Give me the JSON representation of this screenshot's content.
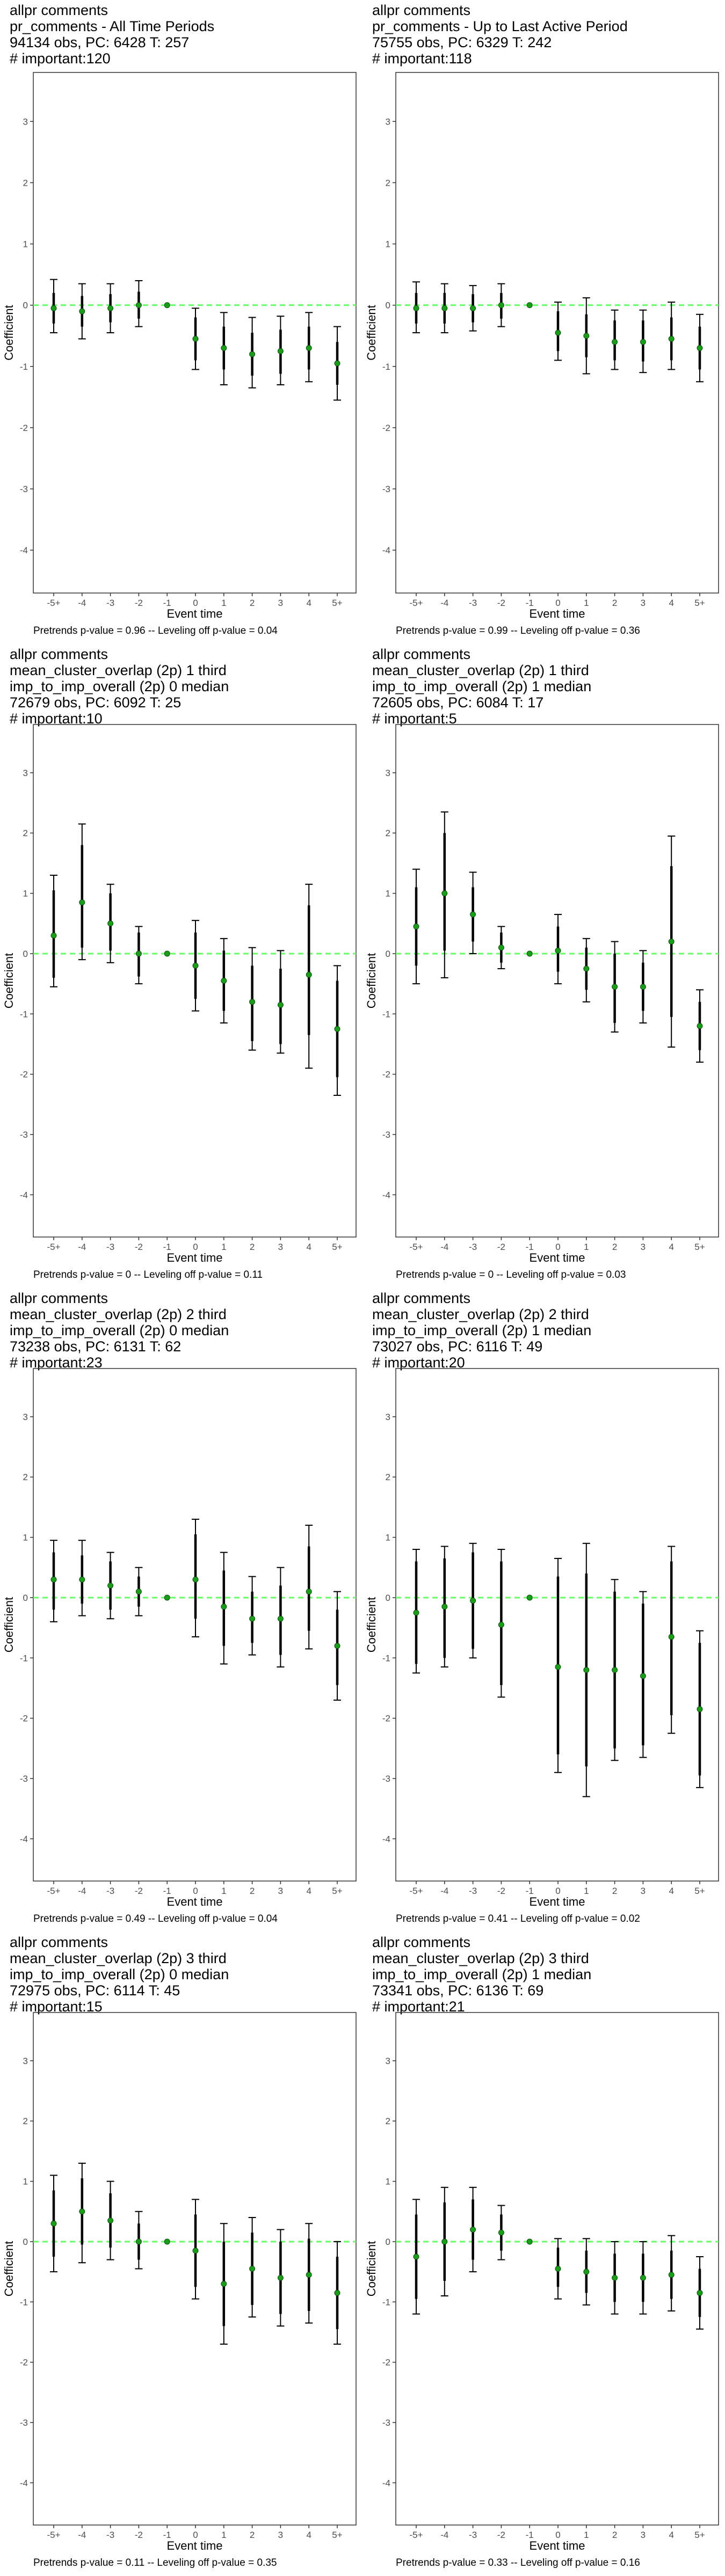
{
  "axes": {
    "xlabel": "Event time",
    "ylabel": "Coefficient"
  },
  "chart_data": [
    {
      "type": "scatter",
      "title_lines": [
        "allpr comments",
        "pr_comments - All Time Periods",
        "94134 obs, PC: 6428 T: 257",
        "# important:120"
      ],
      "footnote": "Pretrends p-value = 0.96 -- Leveling off p-value = 0.04",
      "xlabel": "Event time",
      "ylabel": "Coefficient",
      "ylim": [
        -4.7,
        3.8
      ],
      "yticks": [
        "-4",
        "-3",
        "-2",
        "-1",
        "0",
        "1",
        "2",
        "3"
      ],
      "categories": [
        "-5+",
        "-4",
        "-3",
        "-2",
        "-1",
        "0",
        "1",
        "2",
        "3",
        "4",
        "5+"
      ],
      "series": [
        {
          "estimate": [
            -0.05,
            -0.1,
            -0.05,
            0.0,
            0.0,
            -0.55,
            -0.7,
            -0.8,
            -0.75,
            -0.7,
            -0.95
          ],
          "inner_low": [
            -0.3,
            -0.35,
            -0.28,
            -0.22,
            0.0,
            -0.9,
            -1.05,
            -1.15,
            -1.12,
            -1.05,
            -1.3
          ],
          "inner_high": [
            0.2,
            0.15,
            0.18,
            0.22,
            0.0,
            -0.2,
            -0.35,
            -0.45,
            -0.4,
            -0.35,
            -0.6
          ],
          "outer_low": [
            -0.45,
            -0.55,
            -0.45,
            -0.35,
            0.0,
            -1.05,
            -1.3,
            -1.35,
            -1.3,
            -1.25,
            -1.55
          ],
          "outer_high": [
            0.42,
            0.35,
            0.35,
            0.4,
            0.0,
            -0.05,
            -0.12,
            -0.2,
            -0.18,
            -0.12,
            -0.35
          ]
        }
      ]
    },
    {
      "type": "scatter",
      "title_lines": [
        "allpr comments",
        "pr_comments - Up to Last Active Period",
        "75755 obs, PC: 6329 T: 242",
        "# important:118"
      ],
      "footnote": "Pretrends p-value = 0.99 -- Leveling off p-value = 0.36",
      "xlabel": "Event time",
      "ylabel": "Coefficient",
      "ylim": [
        -4.7,
        3.8
      ],
      "yticks": [
        "-4",
        "-3",
        "-2",
        "-1",
        "0",
        "1",
        "2",
        "3"
      ],
      "categories": [
        "-5+",
        "-4",
        "-3",
        "-2",
        "-1",
        "0",
        "1",
        "2",
        "3",
        "4",
        "5+"
      ],
      "series": [
        {
          "estimate": [
            -0.05,
            -0.05,
            -0.05,
            0.0,
            0.0,
            -0.45,
            -0.5,
            -0.6,
            -0.6,
            -0.55,
            -0.7
          ],
          "inner_low": [
            -0.3,
            -0.3,
            -0.28,
            -0.22,
            0.0,
            -0.75,
            -0.85,
            -0.9,
            -0.92,
            -0.9,
            -1.05
          ],
          "inner_high": [
            0.2,
            0.2,
            0.18,
            0.2,
            0.0,
            -0.1,
            -0.15,
            -0.25,
            -0.25,
            -0.2,
            -0.35
          ],
          "outer_low": [
            -0.45,
            -0.45,
            -0.42,
            -0.35,
            0.0,
            -0.9,
            -1.12,
            -1.05,
            -1.1,
            -1.05,
            -1.25
          ],
          "outer_high": [
            0.38,
            0.35,
            0.32,
            0.35,
            0.0,
            0.05,
            0.12,
            -0.08,
            -0.08,
            0.05,
            -0.15
          ]
        }
      ]
    },
    {
      "type": "scatter",
      "title_lines": [
        "allpr comments",
        "mean_cluster_overlap (2p) 1 third",
        "imp_to_imp_overall (2p) 0 median",
        "72679 obs, PC: 6092 T: 25",
        "# important:10"
      ],
      "footnote": "Pretrends p-value = 0 -- Leveling off p-value = 0.11",
      "xlabel": "Event time",
      "ylabel": "Coefficient",
      "ylim": [
        -4.7,
        3.8
      ],
      "yticks": [
        "-4",
        "-3",
        "-2",
        "-1",
        "0",
        "1",
        "2",
        "3"
      ],
      "categories": [
        "-5+",
        "-4",
        "-3",
        "-2",
        "-1",
        "0",
        "1",
        "2",
        "3",
        "4",
        "5+"
      ],
      "series": [
        {
          "estimate": [
            0.3,
            0.85,
            0.5,
            0.0,
            0.0,
            -0.2,
            -0.45,
            -0.8,
            -0.85,
            -0.35,
            -1.25
          ],
          "inner_low": [
            -0.4,
            0.1,
            0.05,
            -0.38,
            0.0,
            -0.75,
            -0.95,
            -1.45,
            -1.5,
            -1.35,
            -2.05
          ],
          "inner_high": [
            1.05,
            1.8,
            1.0,
            0.35,
            0.0,
            0.35,
            0.05,
            -0.2,
            -0.25,
            0.8,
            -0.45
          ],
          "outer_low": [
            -0.55,
            -0.1,
            -0.15,
            -0.5,
            0.0,
            -0.95,
            -1.15,
            -1.6,
            -1.65,
            -1.9,
            -2.35
          ],
          "outer_high": [
            1.3,
            2.15,
            1.15,
            0.45,
            0.0,
            0.55,
            0.25,
            0.1,
            0.05,
            1.15,
            -0.2
          ]
        }
      ]
    },
    {
      "type": "scatter",
      "title_lines": [
        "allpr comments",
        "mean_cluster_overlap (2p) 1 third",
        "imp_to_imp_overall (2p) 1 median",
        "72605 obs, PC: 6084 T: 17",
        "# important:5"
      ],
      "footnote": "Pretrends p-value = 0 -- Leveling off p-value = 0.03",
      "xlabel": "Event time",
      "ylabel": "Coefficient",
      "ylim": [
        -4.7,
        3.8
      ],
      "yticks": [
        "-4",
        "-3",
        "-2",
        "-1",
        "0",
        "1",
        "2",
        "3"
      ],
      "categories": [
        "-5+",
        "-4",
        "-3",
        "-2",
        "-1",
        "0",
        "1",
        "2",
        "3",
        "4",
        "5+"
      ],
      "series": [
        {
          "estimate": [
            0.45,
            1.0,
            0.65,
            0.1,
            0.0,
            0.05,
            -0.25,
            -0.55,
            -0.55,
            0.2,
            -1.2
          ],
          "inner_low": [
            -0.2,
            0.05,
            0.2,
            -0.15,
            0.0,
            -0.3,
            -0.6,
            -1.15,
            -0.95,
            -1.05,
            -1.6
          ],
          "inner_high": [
            1.1,
            2.0,
            1.1,
            0.35,
            0.0,
            0.45,
            0.1,
            0.0,
            -0.15,
            1.45,
            -0.8
          ],
          "outer_low": [
            -0.5,
            -0.4,
            0.0,
            -0.25,
            0.0,
            -0.5,
            -0.8,
            -1.3,
            -1.15,
            -1.55,
            -1.8
          ],
          "outer_high": [
            1.4,
            2.35,
            1.35,
            0.45,
            0.0,
            0.65,
            0.25,
            0.2,
            0.05,
            1.95,
            -0.6
          ]
        }
      ]
    },
    {
      "type": "scatter",
      "title_lines": [
        "allpr comments",
        "mean_cluster_overlap (2p) 2 third",
        "imp_to_imp_overall (2p) 0 median",
        "73238 obs, PC: 6131 T: 62",
        "# important:23"
      ],
      "footnote": "Pretrends p-value = 0.49 -- Leveling off p-value = 0.04",
      "xlabel": "Event time",
      "ylabel": "Coefficient",
      "ylim": [
        -4.7,
        3.8
      ],
      "yticks": [
        "-4",
        "-3",
        "-2",
        "-1",
        "0",
        "1",
        "2",
        "3"
      ],
      "categories": [
        "-5+",
        "-4",
        "-3",
        "-2",
        "-1",
        "0",
        "1",
        "2",
        "3",
        "4",
        "5+"
      ],
      "series": [
        {
          "estimate": [
            0.3,
            0.3,
            0.2,
            0.1,
            0.0,
            0.3,
            -0.15,
            -0.35,
            -0.35,
            0.1,
            -0.8
          ],
          "inner_low": [
            -0.2,
            -0.1,
            -0.2,
            -0.15,
            0.0,
            -0.35,
            -0.8,
            -0.75,
            -0.95,
            -0.55,
            -1.45
          ],
          "inner_high": [
            0.75,
            0.7,
            0.6,
            0.35,
            0.0,
            1.05,
            0.45,
            0.1,
            0.2,
            0.85,
            -0.2
          ],
          "outer_low": [
            -0.4,
            -0.3,
            -0.35,
            -0.3,
            0.0,
            -0.65,
            -1.1,
            -0.95,
            -1.15,
            -0.85,
            -1.7
          ],
          "outer_high": [
            0.95,
            0.95,
            0.75,
            0.5,
            0.0,
            1.3,
            0.75,
            0.35,
            0.5,
            1.2,
            0.1
          ]
        }
      ]
    },
    {
      "type": "scatter",
      "title_lines": [
        "allpr comments",
        "mean_cluster_overlap (2p) 2 third",
        "imp_to_imp_overall (2p) 1 median",
        "73027 obs, PC: 6116 T: 49",
        "# important:20"
      ],
      "footnote": "Pretrends p-value = 0.41 -- Leveling off p-value = 0.02",
      "xlabel": "Event time",
      "ylabel": "Coefficient",
      "ylim": [
        -4.7,
        3.8
      ],
      "yticks": [
        "-4",
        "-3",
        "-2",
        "-1",
        "0",
        "1",
        "2",
        "3"
      ],
      "categories": [
        "-5+",
        "-4",
        "-3",
        "-2",
        "-1",
        "0",
        "1",
        "2",
        "3",
        "4",
        "5+"
      ],
      "series": [
        {
          "estimate": [
            -0.25,
            -0.15,
            -0.05,
            -0.45,
            0.0,
            -1.15,
            -1.2,
            -1.2,
            -1.3,
            -0.65,
            -1.85
          ],
          "inner_low": [
            -1.1,
            -1.0,
            -0.85,
            -1.45,
            0.0,
            -2.6,
            -2.8,
            -2.5,
            -2.45,
            -1.95,
            -2.95
          ],
          "inner_high": [
            0.6,
            0.65,
            0.75,
            0.6,
            0.0,
            0.35,
            0.4,
            0.1,
            -0.1,
            0.6,
            -0.75
          ],
          "outer_low": [
            -1.25,
            -1.15,
            -1.0,
            -1.65,
            0.0,
            -2.9,
            -3.3,
            -2.7,
            -2.65,
            -2.25,
            -3.15
          ],
          "outer_high": [
            0.8,
            0.85,
            0.9,
            0.8,
            0.0,
            0.65,
            0.9,
            0.3,
            0.1,
            0.85,
            -0.55
          ]
        }
      ]
    },
    {
      "type": "scatter",
      "title_lines": [
        "allpr comments",
        "mean_cluster_overlap (2p) 3 third",
        "imp_to_imp_overall (2p) 0 median",
        "72975 obs, PC: 6114 T: 45",
        "# important:15"
      ],
      "footnote": "Pretrends p-value = 0.11 -- Leveling off p-value = 0.35",
      "xlabel": "Event time",
      "ylabel": "Coefficient",
      "ylim": [
        -4.7,
        3.8
      ],
      "yticks": [
        "-4",
        "-3",
        "-2",
        "-1",
        "0",
        "1",
        "2",
        "3"
      ],
      "categories": [
        "-5+",
        "-4",
        "-3",
        "-2",
        "-1",
        "0",
        "1",
        "2",
        "3",
        "4",
        "5+"
      ],
      "series": [
        {
          "estimate": [
            0.3,
            0.5,
            0.35,
            0.0,
            0.0,
            -0.15,
            -0.7,
            -0.45,
            -0.6,
            -0.55,
            -0.85
          ],
          "inner_low": [
            -0.25,
            -0.05,
            -0.1,
            -0.3,
            0.0,
            -0.75,
            -1.4,
            -1.05,
            -1.2,
            -1.15,
            -1.45
          ],
          "inner_high": [
            0.85,
            1.05,
            0.8,
            0.3,
            0.0,
            0.45,
            0.0,
            0.15,
            0.0,
            0.05,
            -0.25
          ],
          "outer_low": [
            -0.5,
            -0.35,
            -0.3,
            -0.45,
            0.0,
            -0.95,
            -1.7,
            -1.25,
            -1.4,
            -1.35,
            -1.7
          ],
          "outer_high": [
            1.1,
            1.3,
            1.0,
            0.5,
            0.0,
            0.7,
            0.3,
            0.4,
            0.2,
            0.3,
            0.0
          ]
        }
      ]
    },
    {
      "type": "scatter",
      "title_lines": [
        "allpr comments",
        "mean_cluster_overlap (2p) 3 third",
        "imp_to_imp_overall (2p) 1 median",
        "73341 obs, PC: 6136 T: 69",
        "# important:21"
      ],
      "footnote": "Pretrends p-value = 0.33 -- Leveling off p-value = 0.16",
      "xlabel": "Event time",
      "ylabel": "Coefficient",
      "ylim": [
        -4.7,
        3.8
      ],
      "yticks": [
        "-4",
        "-3",
        "-2",
        "-1",
        "0",
        "1",
        "2",
        "3"
      ],
      "categories": [
        "-5+",
        "-4",
        "-3",
        "-2",
        "-1",
        "0",
        "1",
        "2",
        "3",
        "4",
        "5+"
      ],
      "series": [
        {
          "estimate": [
            -0.25,
            0.0,
            0.2,
            0.15,
            0.0,
            -0.45,
            -0.5,
            -0.6,
            -0.6,
            -0.55,
            -0.85
          ],
          "inner_low": [
            -0.95,
            -0.65,
            -0.3,
            -0.15,
            0.0,
            -0.75,
            -0.85,
            -1.0,
            -1.0,
            -0.95,
            -1.25
          ],
          "inner_high": [
            0.45,
            0.65,
            0.7,
            0.45,
            0.0,
            -0.1,
            -0.15,
            -0.2,
            -0.2,
            -0.15,
            -0.45
          ],
          "outer_low": [
            -1.2,
            -0.9,
            -0.5,
            -0.3,
            0.0,
            -0.95,
            -1.05,
            -1.2,
            -1.2,
            -1.15,
            -1.45
          ],
          "outer_high": [
            0.7,
            0.9,
            0.9,
            0.6,
            0.0,
            0.05,
            0.05,
            0.0,
            0.0,
            0.1,
            -0.25
          ]
        }
      ]
    }
  ],
  "colors": {
    "estimate_point": "#1a9e1a",
    "zero_line": "#66ff66",
    "error_bar": "#000000",
    "panel_border": "#333333",
    "tick_text": "#4d4d4d"
  }
}
